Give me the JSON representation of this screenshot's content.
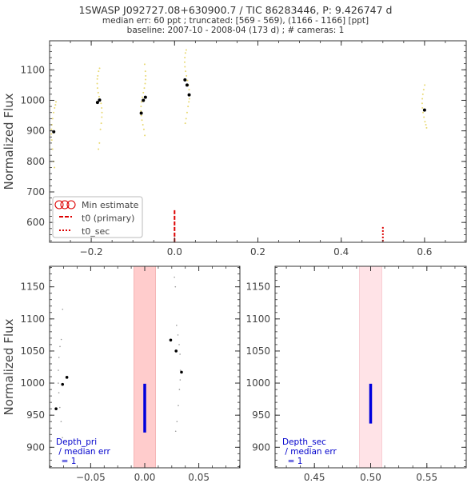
{
  "header": {
    "title": "1SWASP J092727.08+630900.7 / TIC 86283446, P: 9.426747 d",
    "line2": "median err: 60 ppt ; truncated: [569 - 569), (1166 - 1166] [ppt]",
    "line3": "baseline: 2007-10 - 2008-04 (173 d)  ;  # cameras: 1"
  },
  "colors": {
    "raw_points": "#e8d870",
    "binned_points": "#000000",
    "t0_primary": "#dd0000",
    "min_estimate": "#dd0000",
    "zoom_raw": "#999999",
    "pri_window": "#ffcccc",
    "sec_window": "#ffe3e7",
    "depth_bar": "#0000dd",
    "depth_text": "#0000cc"
  },
  "chart_data": [
    {
      "type": "scatter",
      "ylabel": "Normalized Flux",
      "xlim": [
        -0.3,
        0.7
      ],
      "ylim": [
        535,
        1195
      ],
      "xticks": [
        -0.2,
        0.0,
        0.2,
        0.4,
        0.6
      ],
      "xtick_labels": [
        "−0.2",
        "0.0",
        "0.2",
        "0.4",
        "0.6"
      ],
      "yticks": [
        600,
        700,
        800,
        900,
        1000,
        1100
      ],
      "ytick_labels": [
        "600",
        "700",
        "800",
        "900",
        "1000",
        "1100"
      ],
      "legend": {
        "placement": "lower-left",
        "entries": [
          "Min estimate",
          "t0 (primary)",
          "t0_sec"
        ]
      },
      "t0_primary": {
        "x": 0.0,
        "y_range": [
          535,
          640
        ]
      },
      "t0_sec": {
        "x": 0.5,
        "y_range": [
          535,
          585
        ]
      },
      "binned": {
        "x": [
          -0.29,
          -0.185,
          -0.18,
          -0.08,
          -0.075,
          -0.07,
          0.025,
          0.03,
          0.035,
          0.6
        ],
        "y": [
          897,
          993,
          1001,
          958,
          1000,
          1010,
          1067,
          1050,
          1018,
          968
        ]
      },
      "raw_clusters": [
        {
          "x": -0.29,
          "y": [
            780,
            800,
            840,
            870,
            890,
            905,
            920,
            940,
            960,
            975,
            985,
            995
          ]
        },
        {
          "x": -0.18,
          "y": [
            840,
            860,
            905,
            925,
            945,
            960,
            975,
            990,
            1000,
            1012,
            1025,
            1040,
            1055,
            1070,
            1080,
            1095,
            1105
          ]
        },
        {
          "x": -0.075,
          "y": [
            885,
            905,
            920,
            935,
            950,
            965,
            980,
            995,
            1010,
            1025,
            1040,
            1055,
            1068,
            1080,
            1095,
            1118
          ]
        },
        {
          "x": 0.03,
          "y": [
            925,
            940,
            960,
            980,
            995,
            1005,
            1020,
            1035,
            1050,
            1065,
            1080,
            1095,
            1110,
            1125,
            1140,
            1155,
            1165
          ]
        },
        {
          "x": 0.6,
          "y": [
            910,
            920,
            930,
            945,
            960,
            975,
            990,
            1005,
            1020,
            1035,
            1050
          ]
        }
      ]
    },
    {
      "type": "scatter",
      "ylabel": "Normalized Flux",
      "xlim": [
        -0.088,
        0.088
      ],
      "ylim": [
        868,
        1182
      ],
      "xticks": [
        -0.05,
        0.0,
        0.05
      ],
      "xtick_labels": [
        "−0.05",
        "0.00",
        "0.05"
      ],
      "yticks": [
        900,
        950,
        1000,
        1050,
        1100,
        1150
      ],
      "ytick_labels": [
        "900",
        "950",
        "1000",
        "1050",
        "1100",
        "1150"
      ],
      "window": [
        -0.01,
        0.01
      ],
      "depth_bar": {
        "x": 0.0,
        "y_range": [
          923,
          999
        ]
      },
      "annotation": [
        "Depth_pri",
        " / median err",
        "  = 1"
      ],
      "binned": {
        "x": [
          -0.082,
          -0.076,
          -0.072,
          0.024,
          0.029,
          0.034
        ],
        "y": [
          960,
          998,
          1009,
          1067,
          1050,
          1017
        ]
      },
      "raw_clusters": [
        {
          "x": -0.077,
          "y": [
            915,
            940,
            962,
            985,
            1000,
            1020,
            1040,
            1057,
            1068,
            1115
          ]
        },
        {
          "x": 0.03,
          "y": [
            925,
            940,
            965,
            990,
            1005,
            1020,
            1045,
            1060,
            1075,
            1090,
            1150,
            1165
          ]
        }
      ]
    },
    {
      "type": "scatter",
      "xlim": [
        0.415,
        0.585
      ],
      "ylim": [
        868,
        1182
      ],
      "xticks": [
        0.45,
        0.5,
        0.55
      ],
      "xtick_labels": [
        "0.45",
        "0.50",
        "0.55"
      ],
      "yticks": [
        900,
        950,
        1000,
        1050,
        1100,
        1150
      ],
      "ytick_labels": [
        "900",
        "950",
        "1000",
        "1050",
        "1100",
        "1150"
      ],
      "window": [
        0.49,
        0.51
      ],
      "depth_bar": {
        "x": 0.5,
        "y_range": [
          937,
          999
        ]
      },
      "annotation": [
        "Depth_sec",
        " / median err",
        "  = 1"
      ]
    }
  ]
}
